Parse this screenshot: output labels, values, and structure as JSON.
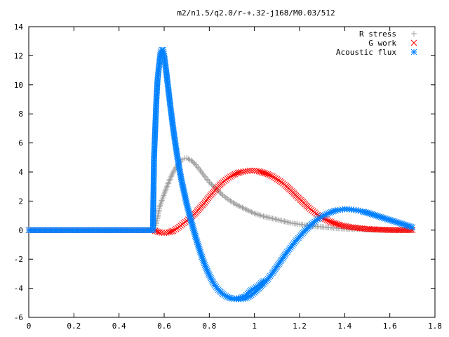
{
  "chart_data": {
    "type": "scatter",
    "title": "m2/n1.5/q2.0/r-+.32-j168/M0.03/512",
    "xlabel": "",
    "ylabel": "",
    "xlim": [
      0,
      1.8
    ],
    "ylim": [
      -6,
      14
    ],
    "grid": false,
    "legend_position": "top-right",
    "xticks": [
      0,
      0.2,
      0.4,
      0.6,
      0.8,
      1,
      1.2,
      1.4,
      1.6,
      1.8
    ],
    "yticks": [
      -6,
      -4,
      -2,
      0,
      2,
      4,
      6,
      8,
      10,
      12,
      14
    ],
    "xtick_labels": [
      "0",
      "0.2",
      "0.4",
      "0.6",
      "0.8",
      "1",
      "1.2",
      "1.4",
      "1.6",
      "1.8"
    ],
    "ytick_labels": [
      "-6",
      "-4",
      "-2",
      "0",
      "2",
      "4",
      "6",
      "8",
      "10",
      "12",
      "14"
    ],
    "series": [
      {
        "name": "R stress",
        "marker": "plus",
        "color": "#a0a0a0",
        "points": [
          [
            0.0,
            0.0
          ],
          [
            0.1,
            0.0
          ],
          [
            0.2,
            0.0
          ],
          [
            0.3,
            0.0
          ],
          [
            0.4,
            0.0
          ],
          [
            0.5,
            0.0
          ],
          [
            0.55,
            0.0
          ],
          [
            0.56,
            0.2
          ],
          [
            0.57,
            0.8
          ],
          [
            0.58,
            1.6
          ],
          [
            0.6,
            2.5
          ],
          [
            0.62,
            3.3
          ],
          [
            0.64,
            4.0
          ],
          [
            0.66,
            4.5
          ],
          [
            0.68,
            4.85
          ],
          [
            0.69,
            4.95
          ],
          [
            0.7,
            4.95
          ],
          [
            0.72,
            4.8
          ],
          [
            0.74,
            4.5
          ],
          [
            0.76,
            4.1
          ],
          [
            0.78,
            3.7
          ],
          [
            0.8,
            3.3
          ],
          [
            0.82,
            3.0
          ],
          [
            0.84,
            2.7
          ],
          [
            0.86,
            2.4
          ],
          [
            0.88,
            2.15
          ],
          [
            0.9,
            1.95
          ],
          [
            0.92,
            1.75
          ],
          [
            0.94,
            1.6
          ],
          [
            0.96,
            1.45
          ],
          [
            0.98,
            1.3
          ],
          [
            1.0,
            1.15
          ],
          [
            1.04,
            0.95
          ],
          [
            1.08,
            0.8
          ],
          [
            1.12,
            0.65
          ],
          [
            1.16,
            0.5
          ],
          [
            1.2,
            0.4
          ],
          [
            1.25,
            0.3
          ],
          [
            1.3,
            0.22
          ],
          [
            1.35,
            0.15
          ],
          [
            1.4,
            0.1
          ],
          [
            1.45,
            0.07
          ],
          [
            1.5,
            0.04
          ],
          [
            1.55,
            0.02
          ],
          [
            1.6,
            0.01
          ],
          [
            1.65,
            0.0
          ],
          [
            1.7,
            0.0
          ]
        ]
      },
      {
        "name": "G work",
        "marker": "cross",
        "color": "#ff0000",
        "points": [
          [
            0.0,
            0.0
          ],
          [
            0.1,
            0.0
          ],
          [
            0.2,
            0.0
          ],
          [
            0.3,
            0.0
          ],
          [
            0.4,
            0.0
          ],
          [
            0.5,
            0.0
          ],
          [
            0.55,
            0.0
          ],
          [
            0.56,
            -0.05
          ],
          [
            0.58,
            -0.15
          ],
          [
            0.6,
            -0.2
          ],
          [
            0.62,
            -0.15
          ],
          [
            0.64,
            -0.05
          ],
          [
            0.66,
            0.15
          ],
          [
            0.68,
            0.4
          ],
          [
            0.7,
            0.65
          ],
          [
            0.72,
            0.9
          ],
          [
            0.74,
            1.2
          ],
          [
            0.76,
            1.55
          ],
          [
            0.78,
            1.9
          ],
          [
            0.8,
            2.3
          ],
          [
            0.82,
            2.65
          ],
          [
            0.84,
            3.0
          ],
          [
            0.86,
            3.3
          ],
          [
            0.88,
            3.55
          ],
          [
            0.9,
            3.75
          ],
          [
            0.92,
            3.9
          ],
          [
            0.94,
            4.0
          ],
          [
            0.96,
            4.05
          ],
          [
            0.98,
            4.1
          ],
          [
            1.0,
            4.1
          ],
          [
            1.02,
            4.05
          ],
          [
            1.04,
            3.95
          ],
          [
            1.06,
            3.85
          ],
          [
            1.08,
            3.7
          ],
          [
            1.1,
            3.5
          ],
          [
            1.12,
            3.3
          ],
          [
            1.14,
            3.05
          ],
          [
            1.16,
            2.75
          ],
          [
            1.18,
            2.45
          ],
          [
            1.2,
            2.15
          ],
          [
            1.22,
            1.85
          ],
          [
            1.24,
            1.55
          ],
          [
            1.26,
            1.3
          ],
          [
            1.28,
            1.05
          ],
          [
            1.3,
            0.85
          ],
          [
            1.34,
            0.55
          ],
          [
            1.38,
            0.35
          ],
          [
            1.42,
            0.22
          ],
          [
            1.46,
            0.14
          ],
          [
            1.5,
            0.08
          ],
          [
            1.55,
            0.04
          ],
          [
            1.6,
            0.01
          ],
          [
            1.65,
            0.0
          ],
          [
            1.7,
            0.0
          ]
        ]
      },
      {
        "name": "Acoustic flux",
        "marker": "star",
        "color": "#0080ff",
        "points": [
          [
            0.0,
            0.0
          ],
          [
            0.1,
            0.0
          ],
          [
            0.2,
            0.0
          ],
          [
            0.3,
            0.0
          ],
          [
            0.4,
            0.0
          ],
          [
            0.5,
            0.0
          ],
          [
            0.55,
            0.0
          ],
          [
            0.555,
            4.9
          ],
          [
            0.565,
            8.8
          ],
          [
            0.57,
            10.2
          ],
          [
            0.575,
            11.0
          ],
          [
            0.58,
            11.7
          ],
          [
            0.585,
            12.3
          ],
          [
            0.59,
            12.4
          ],
          [
            0.595,
            12.4
          ],
          [
            0.6,
            12.0
          ],
          [
            0.61,
            10.8
          ],
          [
            0.62,
            9.5
          ],
          [
            0.63,
            8.2
          ],
          [
            0.64,
            7.0
          ],
          [
            0.65,
            5.9
          ],
          [
            0.66,
            4.9
          ],
          [
            0.67,
            4.0
          ],
          [
            0.68,
            3.2
          ],
          [
            0.7,
            1.8
          ],
          [
            0.72,
            0.6
          ],
          [
            0.74,
            -0.5
          ],
          [
            0.76,
            -1.5
          ],
          [
            0.78,
            -2.4
          ],
          [
            0.8,
            -3.1
          ],
          [
            0.82,
            -3.7
          ],
          [
            0.84,
            -4.1
          ],
          [
            0.86,
            -4.4
          ],
          [
            0.88,
            -4.6
          ],
          [
            0.9,
            -4.7
          ],
          [
            0.92,
            -4.75
          ],
          [
            0.94,
            -4.75
          ],
          [
            0.96,
            -4.7
          ],
          [
            0.98,
            -4.55
          ],
          [
            1.0,
            -4.3
          ],
          [
            1.02,
            -4.0
          ],
          [
            1.04,
            -3.7
          ],
          [
            1.06,
            -3.35
          ],
          [
            1.08,
            -2.95
          ],
          [
            1.1,
            -2.5
          ],
          [
            1.12,
            -2.05
          ],
          [
            1.14,
            -1.6
          ],
          [
            1.16,
            -1.2
          ],
          [
            1.18,
            -0.8
          ],
          [
            1.2,
            -0.45
          ],
          [
            1.22,
            -0.1
          ],
          [
            1.24,
            0.2
          ],
          [
            1.26,
            0.5
          ],
          [
            1.28,
            0.75
          ],
          [
            1.3,
            0.95
          ],
          [
            1.32,
            1.1
          ],
          [
            1.34,
            1.25
          ],
          [
            1.36,
            1.35
          ],
          [
            1.38,
            1.4
          ],
          [
            1.4,
            1.45
          ],
          [
            1.42,
            1.43
          ],
          [
            1.44,
            1.4
          ],
          [
            1.46,
            1.35
          ],
          [
            1.48,
            1.28
          ],
          [
            1.5,
            1.2
          ],
          [
            1.52,
            1.1
          ],
          [
            1.54,
            1.0
          ],
          [
            1.56,
            0.9
          ],
          [
            1.58,
            0.8
          ],
          [
            1.6,
            0.7
          ],
          [
            1.62,
            0.6
          ],
          [
            1.64,
            0.5
          ],
          [
            1.66,
            0.4
          ],
          [
            1.68,
            0.3
          ],
          [
            1.7,
            0.2
          ],
          [
            0.92,
            -4.7
          ],
          [
            0.94,
            -4.65
          ],
          [
            0.96,
            -4.55
          ],
          [
            0.98,
            -4.2
          ],
          [
            1.0,
            -4.0
          ],
          [
            1.02,
            -3.8
          ],
          [
            1.04,
            -3.5
          ]
        ]
      }
    ]
  }
}
